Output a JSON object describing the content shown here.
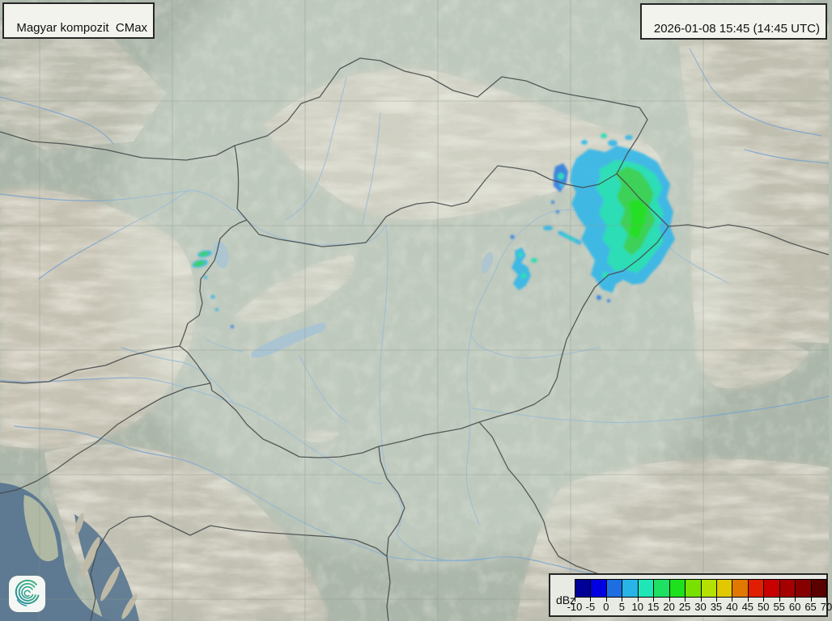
{
  "header": {
    "product": "Magyar kompozit  CMax",
    "timestamp": "2026-01-08 15:45 (14:45 UTC)"
  },
  "legend": {
    "unit": "dBz",
    "tick_labels": [
      "-10",
      "-5",
      "0",
      "5",
      "10",
      "15",
      "20",
      "25",
      "30",
      "35",
      "40",
      "45",
      "50",
      "55",
      "60",
      "65",
      "70"
    ],
    "colors": [
      "#000096",
      "#0000e1",
      "#1e6ee1",
      "#28b4e6",
      "#1ee6b4",
      "#1ee164",
      "#1ee11e",
      "#78e100",
      "#b4e100",
      "#e1c800",
      "#e17800",
      "#e11e00",
      "#c80000",
      "#a50000",
      "#870000",
      "#5a0000"
    ]
  },
  "branding": {
    "logo": "hungaromet-spiral-logo"
  },
  "map": {
    "colors": {
      "land_base": "#b2bfb2",
      "mountain": "#d8cfbf",
      "mountain_dull": "#cfc9ba",
      "sea": "#5d7b97",
      "island": "#c6c2ae",
      "lake": "#8fb6d4",
      "river": "#7aa8d8",
      "border": "#45494a",
      "graticule": "#8d988d",
      "composite_circle_tint": "#e8f0e6"
    },
    "echo_palette": {
      "edge_blue": "#2d7ee0",
      "cyan": "#30b6e8",
      "turquoise": "#1fdfb4",
      "green": "#2ed24d",
      "bright_green": "#17e017"
    }
  }
}
